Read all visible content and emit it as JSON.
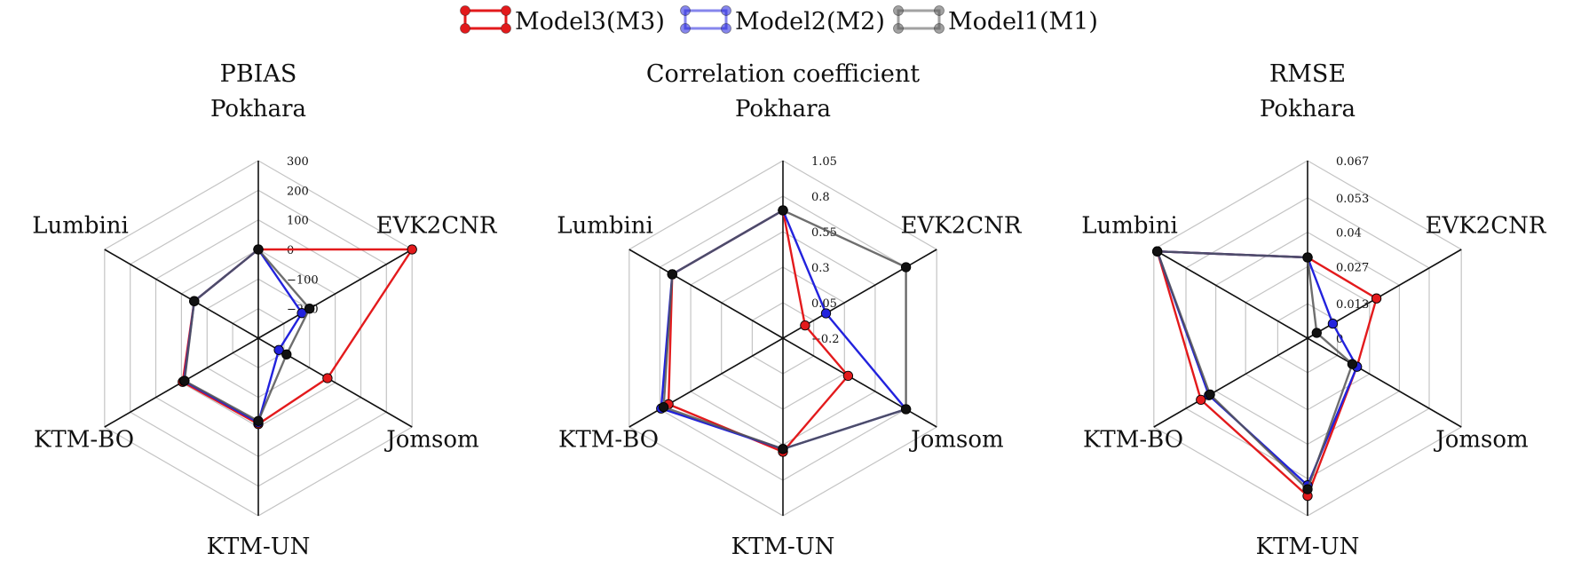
{
  "colors": {
    "M3": "#e31a1c",
    "M2": "#2222dd",
    "M1": "#555555",
    "M1_marker": "#111111",
    "grid": "#c4c4c4",
    "axis": "#111111"
  },
  "legend": {
    "placement": "top-center",
    "entries": [
      {
        "key": "M3",
        "label": "Model3(M3)"
      },
      {
        "key": "M2",
        "label": "Model2(M2)"
      },
      {
        "key": "M1",
        "label": "Model1(M1)"
      }
    ]
  },
  "chart_data": [
    {
      "type": "radar",
      "title": "PBIAS",
      "axes": [
        "Pokhara",
        "EVK2CNR",
        "Jomsom",
        "KTM-UN",
        "KTM-BO",
        "Lumbini"
      ],
      "rlim": [
        -300,
        300
      ],
      "ticks": [
        -200,
        -100,
        0,
        100,
        200,
        300
      ],
      "tick_labels": [
        "−200",
        "−100",
        "0",
        "100",
        "200",
        "300"
      ],
      "grid": true,
      "series": [
        {
          "key": "M3",
          "name": "Model3(M3)",
          "values": [
            0,
            300,
            -30,
            -10,
            -5,
            -50
          ]
        },
        {
          "key": "M2",
          "name": "Model2(M2)",
          "values": [
            0,
            -130,
            -220,
            -15,
            -10,
            -50
          ]
        },
        {
          "key": "M1",
          "name": "Model1(M1)",
          "values": [
            0,
            -100,
            -190,
            -20,
            -12,
            -50
          ]
        }
      ]
    },
    {
      "type": "radar",
      "title": "Correlation coefficient",
      "axes": [
        "Pokhara",
        "EVK2CNR",
        "Jomsom",
        "KTM-UN",
        "KTM-BO",
        "Lumbini"
      ],
      "rlim": [
        -0.2,
        1.05
      ],
      "ticks": [
        -0.2,
        0.05,
        0.3,
        0.55,
        0.8,
        1.05
      ],
      "tick_labels": [
        "−0.2",
        "0.05",
        "0.3",
        "0.55",
        "0.8",
        "1.05"
      ],
      "grid": true,
      "series": [
        {
          "key": "M3",
          "name": "Model3(M3)",
          "values": [
            0.7,
            -0.02,
            0.33,
            0.6,
            0.73,
            0.7
          ]
        },
        {
          "key": "M2",
          "name": "Model2(M2)",
          "values": [
            0.7,
            0.15,
            0.8,
            0.58,
            0.79,
            0.7
          ]
        },
        {
          "key": "M1",
          "name": "Model1(M1)",
          "values": [
            0.7,
            0.8,
            0.8,
            0.58,
            0.77,
            0.7
          ]
        }
      ]
    },
    {
      "type": "radar",
      "title": "RMSE",
      "axes": [
        "Pokhara",
        "EVK2CNR",
        "Jomsom",
        "KTM-UN",
        "KTM-BO",
        "Lumbini"
      ],
      "rlim": [
        0,
        0.067
      ],
      "ticks": [
        0,
        0.013,
        0.027,
        0.04,
        0.053,
        0.067
      ],
      "tick_labels": [
        "0",
        "0.013",
        "0.027",
        "0.04",
        "0.053",
        "0.067"
      ],
      "grid": true,
      "series": [
        {
          "key": "M3",
          "name": "Model3(M3)",
          "values": [
            0.0305,
            0.03,
            0.0215,
            0.0595,
            0.0465,
            0.0655
          ]
        },
        {
          "key": "M2",
          "name": "Model2(M2)",
          "values": [
            0.0305,
            0.011,
            0.0215,
            0.0555,
            0.043,
            0.0655
          ]
        },
        {
          "key": "M1",
          "name": "Model1(M1)",
          "values": [
            0.0305,
            0.004,
            0.0195,
            0.057,
            0.0425,
            0.0655
          ]
        }
      ]
    }
  ]
}
